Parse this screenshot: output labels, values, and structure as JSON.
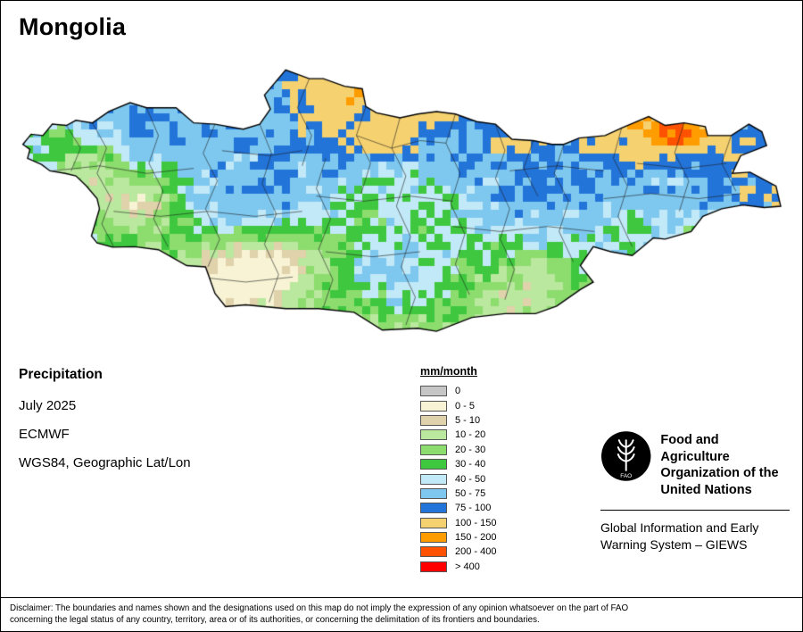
{
  "title": "Mongolia",
  "info": {
    "heading": "Precipitation",
    "date": "July 2025",
    "source": "ECMWF",
    "projection": "WGS84, Geographic Lat/Lon"
  },
  "legend": {
    "title": "mm/month",
    "bins": [
      {
        "max": 0.75,
        "color": "#c6c6c6",
        "label": "0"
      },
      {
        "max": 5,
        "color": "#f7f3d4",
        "label": "0 - 5"
      },
      {
        "max": 10,
        "color": "#e0d2ab",
        "label": "5 - 10"
      },
      {
        "max": 20,
        "color": "#b9e89e",
        "label": "10 - 20"
      },
      {
        "max": 30,
        "color": "#8cdc6e",
        "label": "20 - 30"
      },
      {
        "max": 40,
        "color": "#3fc83f",
        "label": "30 - 40"
      },
      {
        "max": 50,
        "color": "#c2e9f7",
        "label": "40 - 50"
      },
      {
        "max": 75,
        "color": "#7ec8f0",
        "label": "50 - 75"
      },
      {
        "max": 100,
        "color": "#2374d9",
        "label": "75 - 100"
      },
      {
        "max": 150,
        "color": "#f5d170",
        "label": "100 - 150"
      },
      {
        "max": 200,
        "color": "#ff9c00",
        "label": "150 - 200"
      },
      {
        "max": 400,
        "color": "#ff5200",
        "label": "200 - 400"
      },
      {
        "max": 99999,
        "color": "#ff0000",
        "label": "> 400"
      }
    ]
  },
  "fao": {
    "org_line1": "Food and Agriculture",
    "org_line2": "Organization of the",
    "org_line3": "United Nations",
    "giews_line1": "Global Information and Early",
    "giews_line2": "Warning System – GIEWS"
  },
  "disclaimer": {
    "line1": "Disclaimer: The boundaries and names shown and the designations used on this map do not imply the expression of any opinion whatsoever on the part of FAO",
    "line2": "concerning the legal status of any country, territory, area or of its authorities, or concerning the delimitation of its frontiers and boundaries."
  },
  "map": {
    "outline": [
      [
        87.75,
        49.15
      ],
      [
        88.1,
        49.55
      ],
      [
        88.6,
        49.5
      ],
      [
        89.0,
        49.95
      ],
      [
        89.6,
        49.9
      ],
      [
        90.0,
        50.1
      ],
      [
        90.7,
        50.0
      ],
      [
        91.4,
        50.45
      ],
      [
        92.3,
        50.8
      ],
      [
        93.0,
        50.6
      ],
      [
        94.25,
        50.6
      ],
      [
        95.0,
        50.0
      ],
      [
        95.9,
        49.95
      ],
      [
        97.1,
        49.75
      ],
      [
        97.8,
        49.95
      ],
      [
        98.25,
        50.55
      ],
      [
        98.0,
        51.1
      ],
      [
        98.9,
        52.1
      ],
      [
        99.9,
        51.75
      ],
      [
        100.5,
        51.75
      ],
      [
        101.4,
        51.45
      ],
      [
        102.15,
        51.35
      ],
      [
        102.3,
        50.65
      ],
      [
        102.75,
        50.4
      ],
      [
        103.75,
        50.2
      ],
      [
        104.5,
        50.35
      ],
      [
        105.3,
        50.45
      ],
      [
        106.1,
        50.35
      ],
      [
        107.0,
        50.05
      ],
      [
        107.8,
        49.95
      ],
      [
        108.5,
        49.35
      ],
      [
        109.4,
        49.3
      ],
      [
        110.2,
        49.15
      ],
      [
        110.7,
        49.15
      ],
      [
        111.35,
        49.4
      ],
      [
        112.45,
        49.5
      ],
      [
        113.15,
        49.8
      ],
      [
        114.3,
        50.25
      ],
      [
        115.0,
        49.9
      ],
      [
        115.8,
        50.0
      ],
      [
        116.7,
        49.85
      ],
      [
        116.8,
        49.5
      ],
      [
        117.8,
        49.5
      ],
      [
        118.55,
        49.95
      ],
      [
        119.1,
        49.65
      ],
      [
        119.3,
        49.1
      ],
      [
        118.2,
        48.7
      ],
      [
        117.85,
        48.0
      ],
      [
        118.6,
        48.05
      ],
      [
        119.7,
        47.5
      ],
      [
        119.9,
        46.7
      ],
      [
        119.2,
        46.65
      ],
      [
        118.3,
        46.75
      ],
      [
        117.4,
        46.6
      ],
      [
        116.6,
        46.3
      ],
      [
        116.1,
        45.7
      ],
      [
        115.0,
        45.4
      ],
      [
        114.5,
        45.45
      ],
      [
        113.6,
        44.75
      ],
      [
        112.7,
        44.9
      ],
      [
        111.95,
        45.1
      ],
      [
        111.4,
        44.35
      ],
      [
        111.95,
        43.7
      ],
      [
        111.4,
        43.4
      ],
      [
        110.4,
        42.75
      ],
      [
        109.5,
        42.45
      ],
      [
        108.2,
        42.45
      ],
      [
        106.8,
        42.3
      ],
      [
        105.3,
        41.75
      ],
      [
        104.5,
        41.87
      ],
      [
        103.0,
        41.8
      ],
      [
        101.8,
        42.5
      ],
      [
        100.3,
        42.65
      ],
      [
        98.9,
        42.65
      ],
      [
        97.2,
        42.8
      ],
      [
        96.35,
        42.73
      ],
      [
        95.9,
        43.25
      ],
      [
        95.5,
        44.3
      ],
      [
        94.7,
        44.35
      ],
      [
        93.5,
        44.98
      ],
      [
        92.5,
        45.1
      ],
      [
        91.55,
        45.08
      ],
      [
        90.9,
        45.25
      ],
      [
        90.66,
        45.52
      ],
      [
        91.0,
        46.6
      ],
      [
        90.9,
        47.0
      ],
      [
        90.45,
        47.5
      ],
      [
        90.0,
        47.9
      ],
      [
        89.55,
        48.0
      ],
      [
        88.9,
        48.1
      ],
      [
        88.55,
        48.35
      ],
      [
        87.95,
        48.6
      ],
      [
        88.05,
        48.95
      ]
    ],
    "boundaries": [
      [
        [
          89.6,
          49.9
        ],
        [
          90.2,
          49.0
        ],
        [
          89.8,
          48.1
        ]
      ],
      [
        [
          90.7,
          50.0
        ],
        [
          91.3,
          49.0
        ],
        [
          90.9,
          48.0
        ],
        [
          91.5,
          47.0
        ],
        [
          91.1,
          46.0
        ],
        [
          91.6,
          45.1
        ]
      ],
      [
        [
          93.0,
          50.6
        ],
        [
          93.5,
          49.5
        ],
        [
          93.1,
          48.4
        ],
        [
          93.7,
          47.3
        ],
        [
          93.3,
          46.2
        ],
        [
          93.9,
          45.1
        ]
      ],
      [
        [
          95.9,
          49.95
        ],
        [
          95.4,
          48.8
        ],
        [
          96.0,
          47.7
        ],
        [
          95.5,
          46.6
        ],
        [
          96.1,
          45.4
        ],
        [
          95.6,
          44.3
        ]
      ],
      [
        [
          97.8,
          49.95
        ],
        [
          98.3,
          48.8
        ],
        [
          97.9,
          47.6
        ],
        [
          98.5,
          46.4
        ],
        [
          98.0,
          45.2
        ],
        [
          98.6,
          44.0
        ],
        [
          98.2,
          42.9
        ]
      ],
      [
        [
          99.9,
          51.75
        ],
        [
          99.4,
          50.6
        ],
        [
          100.0,
          49.5
        ],
        [
          99.6,
          48.3
        ]
      ],
      [
        [
          100.6,
          48.6
        ],
        [
          100.2,
          47.4
        ],
        [
          100.8,
          46.2
        ],
        [
          100.3,
          45.0
        ],
        [
          100.9,
          43.8
        ],
        [
          100.5,
          42.7
        ]
      ],
      [
        [
          102.3,
          50.65
        ],
        [
          101.9,
          49.5
        ],
        [
          102.5,
          48.4
        ],
        [
          102.1,
          47.2
        ]
      ],
      [
        [
          103.75,
          50.2
        ],
        [
          103.4,
          49.0
        ],
        [
          104.0,
          47.9
        ],
        [
          103.6,
          46.7
        ],
        [
          104.2,
          45.5
        ],
        [
          103.8,
          44.3
        ],
        [
          104.4,
          43.1
        ],
        [
          104.0,
          42.0
        ]
      ],
      [
        [
          106.1,
          50.35
        ],
        [
          105.7,
          49.2
        ],
        [
          106.3,
          48.0
        ],
        [
          105.9,
          46.8
        ],
        [
          106.5,
          45.6
        ],
        [
          106.1,
          44.4
        ],
        [
          106.7,
          43.2
        ]
      ],
      [
        [
          107.8,
          49.95
        ],
        [
          108.2,
          48.9
        ],
        [
          107.8,
          47.8
        ],
        [
          108.4,
          46.6
        ],
        [
          108.0,
          45.4
        ],
        [
          108.6,
          44.2
        ],
        [
          108.2,
          43.0
        ]
      ],
      [
        [
          110.7,
          49.15
        ],
        [
          110.3,
          48.0
        ],
        [
          110.9,
          46.9
        ],
        [
          110.5,
          45.7
        ],
        [
          111.1,
          44.5
        ]
      ],
      [
        [
          113.15,
          49.8
        ],
        [
          112.8,
          48.6
        ],
        [
          113.4,
          47.5
        ],
        [
          113.0,
          46.3
        ],
        [
          113.6,
          45.1
        ]
      ],
      [
        [
          115.8,
          50.0
        ],
        [
          115.4,
          48.8
        ],
        [
          116.0,
          47.7
        ],
        [
          115.6,
          46.5
        ]
      ],
      [
        [
          117.8,
          49.5
        ],
        [
          117.4,
          48.4
        ],
        [
          118.0,
          47.3
        ]
      ],
      [
        [
          89.0,
          48.1
        ],
        [
          91.0,
          48.3
        ],
        [
          93.0,
          48.0
        ],
        [
          95.0,
          48.2
        ]
      ],
      [
        [
          91.6,
          46.5
        ],
        [
          93.6,
          46.3
        ],
        [
          95.6,
          46.5
        ],
        [
          97.6,
          46.3
        ],
        [
          99.6,
          46.5
        ]
      ],
      [
        [
          96.2,
          48.9
        ],
        [
          98.2,
          48.7
        ],
        [
          99.6,
          48.9
        ]
      ],
      [
        [
          100.2,
          47.1
        ],
        [
          102.2,
          46.9
        ],
        [
          104.2,
          47.1
        ],
        [
          106.0,
          46.9
        ]
      ],
      [
        [
          106.0,
          45.9
        ],
        [
          108.0,
          45.7
        ],
        [
          110.0,
          45.9
        ],
        [
          112.0,
          45.7
        ]
      ],
      [
        [
          108.4,
          48.1
        ],
        [
          110.4,
          48.3
        ],
        [
          112.4,
          48.1
        ]
      ],
      [
        [
          112.4,
          47.0
        ],
        [
          114.4,
          47.2
        ],
        [
          116.4,
          47.0
        ],
        [
          118.2,
          47.2
        ]
      ],
      [
        [
          100.6,
          44.9
        ],
        [
          102.6,
          44.7
        ],
        [
          104.6,
          44.9
        ]
      ],
      [
        [
          95.2,
          43.9
        ],
        [
          97.2,
          43.7
        ],
        [
          99.2,
          43.9
        ]
      ],
      [
        [
          113.8,
          48.4
        ],
        [
          115.8,
          48.2
        ],
        [
          117.6,
          48.4
        ]
      ],
      [
        [
          101.9,
          49.5
        ],
        [
          103.4,
          49.0
        ],
        [
          104.6,
          49.3
        ],
        [
          105.7,
          49.2
        ]
      ],
      [
        [
          109.4,
          49.3
        ],
        [
          109.0,
          48.2
        ],
        [
          109.6,
          47.1
        ]
      ]
    ],
    "pattern": {
      "base": 18,
      "lat_ref": 41.5,
      "lat_gain": 5.5,
      "wave_amp": 14,
      "west_start": 97,
      "west_gain": 1.1,
      "blobs": [
        {
          "lon": 101.5,
          "lat": 50.3,
          "slon": 4.5,
          "slat": 2.0,
          "amp": 26
        },
        {
          "lon": 114.0,
          "lat": 48.8,
          "slon": 4.2,
          "slat": 2.0,
          "amp": 30
        },
        {
          "lon": 118.6,
          "lat": 47.4,
          "slon": 2.4,
          "slat": 2.2,
          "amp": 18
        },
        {
          "lon": 115.4,
          "lat": 49.65,
          "slon": 1.8,
          "slat": 0.85,
          "amp": 78
        },
        {
          "lon": 101.2,
          "lat": 51.5,
          "slon": 1.7,
          "slat": 0.8,
          "amp": 46
        },
        {
          "lon": 104.6,
          "lat": 50.2,
          "slon": 1.1,
          "slat": 0.65,
          "amp": 34
        },
        {
          "lon": 108.6,
          "lat": 49.3,
          "slon": 1.2,
          "slat": 0.7,
          "amp": 42
        },
        {
          "lon": 103.3,
          "lat": 49.1,
          "slon": 1.0,
          "slat": 0.6,
          "amp": 30
        },
        {
          "lon": 96.5,
          "lat": 44.2,
          "slon": 3.2,
          "slat": 1.5,
          "amp": -24
        },
        {
          "lon": 90.4,
          "lat": 48.5,
          "slon": 1.7,
          "slat": 1.3,
          "amp": -26
        },
        {
          "lon": 92.8,
          "lat": 46.9,
          "slon": 1.6,
          "slat": 1.1,
          "amp": -20
        },
        {
          "lon": 89.3,
          "lat": 49.8,
          "slon": 1.2,
          "slat": 0.8,
          "amp": -18
        },
        {
          "lon": 99.0,
          "lat": 45.0,
          "slon": 2.0,
          "slat": 1.2,
          "amp": -16
        }
      ]
    }
  }
}
